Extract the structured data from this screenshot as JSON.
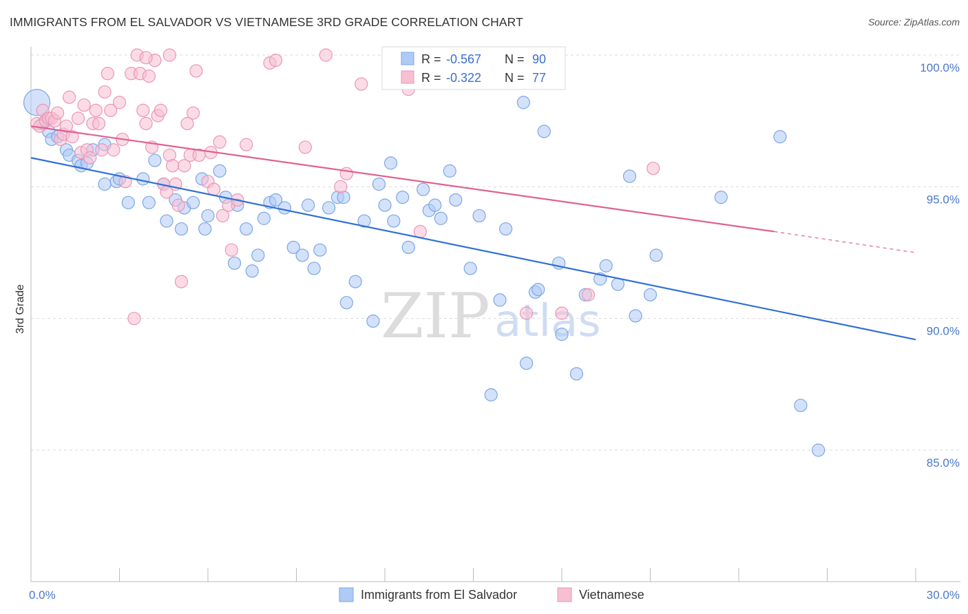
{
  "title": "IMMIGRANTS FROM EL SALVADOR VS VIETNAMESE 3RD GRADE CORRELATION CHART",
  "source": "Source: ZipAtlas.com",
  "watermark": {
    "zip": "ZIP",
    "atlas": "atlas"
  },
  "colors": {
    "blue": "#4a86e0",
    "blue_fill": "#aecbf5",
    "pink": "#e8699a",
    "pink_fill": "#f7bfd2",
    "tick": "#4a78c8"
  },
  "legend": {
    "rows": [
      {
        "r_label": "R = ",
        "r_value": "-0.567",
        "n_label": "N = ",
        "n_value": "90"
      },
      {
        "r_label": "R = ",
        "r_value": "-0.322",
        "n_label": "N = ",
        "n_value": "77"
      }
    ]
  },
  "chart_data": {
    "type": "scatter",
    "xlabel": "",
    "ylabel": "3rd Grade",
    "xlim": [
      0,
      30
    ],
    "ylim": [
      80.5,
      101
    ],
    "x_tick_labels": [
      "0.0%",
      "30.0%"
    ],
    "y_ticks": [
      {
        "value": 100,
        "label": "100.0%"
      },
      {
        "value": 95,
        "label": "95.0%"
      },
      {
        "value": 90,
        "label": "90.0%"
      },
      {
        "value": 85,
        "label": "85.0%"
      }
    ],
    "grid": "horizontal-dashed",
    "legend_position": "top-center",
    "series": [
      {
        "name": "Immigrants from El Salvador",
        "color": "#4a86e0",
        "trend": {
          "x": [
            0,
            30
          ],
          "y": [
            96.1,
            89.2
          ],
          "dashed_from": null
        },
        "points": [
          [
            0.2,
            98.2
          ],
          [
            0.5,
            97.5
          ],
          [
            0.6,
            97.1
          ],
          [
            0.7,
            96.8
          ],
          [
            0.9,
            96.9
          ],
          [
            1.2,
            96.4
          ],
          [
            1.3,
            96.2
          ],
          [
            1.6,
            96.0
          ],
          [
            1.7,
            95.8
          ],
          [
            1.9,
            95.9
          ],
          [
            2.1,
            96.4
          ],
          [
            2.5,
            96.6
          ],
          [
            2.5,
            95.1
          ],
          [
            2.9,
            95.2
          ],
          [
            3.0,
            95.3
          ],
          [
            3.3,
            94.4
          ],
          [
            3.8,
            95.3
          ],
          [
            4.0,
            94.4
          ],
          [
            4.2,
            96.0
          ],
          [
            4.5,
            95.1
          ],
          [
            4.6,
            93.7
          ],
          [
            4.9,
            94.5
          ],
          [
            5.1,
            93.4
          ],
          [
            5.2,
            94.2
          ],
          [
            5.5,
            94.4
          ],
          [
            5.8,
            95.3
          ],
          [
            5.9,
            93.4
          ],
          [
            6.0,
            93.9
          ],
          [
            6.4,
            95.6
          ],
          [
            6.6,
            94.6
          ],
          [
            6.9,
            92.1
          ],
          [
            7.0,
            94.3
          ],
          [
            7.3,
            93.4
          ],
          [
            7.5,
            91.8
          ],
          [
            7.7,
            92.4
          ],
          [
            7.9,
            93.8
          ],
          [
            8.1,
            94.4
          ],
          [
            8.3,
            94.5
          ],
          [
            8.6,
            94.2
          ],
          [
            8.9,
            92.7
          ],
          [
            9.2,
            92.4
          ],
          [
            9.4,
            94.3
          ],
          [
            9.6,
            91.9
          ],
          [
            9.8,
            92.6
          ],
          [
            10.1,
            94.2
          ],
          [
            10.4,
            94.6
          ],
          [
            10.6,
            94.6
          ],
          [
            10.7,
            90.6
          ],
          [
            11.0,
            91.4
          ],
          [
            11.3,
            93.7
          ],
          [
            11.6,
            89.9
          ],
          [
            11.8,
            95.1
          ],
          [
            12.0,
            94.3
          ],
          [
            12.2,
            95.9
          ],
          [
            12.3,
            93.7
          ],
          [
            12.6,
            94.6
          ],
          [
            12.8,
            92.7
          ],
          [
            13.0,
            99.6
          ],
          [
            13.3,
            94.9
          ],
          [
            13.5,
            94.1
          ],
          [
            13.7,
            94.3
          ],
          [
            13.9,
            93.8
          ],
          [
            14.2,
            95.6
          ],
          [
            14.4,
            94.5
          ],
          [
            14.9,
            91.9
          ],
          [
            15.2,
            93.9
          ],
          [
            15.6,
            87.1
          ],
          [
            15.9,
            90.7
          ],
          [
            16.1,
            93.4
          ],
          [
            16.7,
            98.2
          ],
          [
            16.8,
            88.3
          ],
          [
            17.1,
            91.0
          ],
          [
            17.2,
            91.1
          ],
          [
            17.4,
            97.1
          ],
          [
            17.9,
            92.1
          ],
          [
            18.0,
            89.4
          ],
          [
            18.5,
            87.9
          ],
          [
            18.8,
            90.9
          ],
          [
            19.3,
            91.5
          ],
          [
            19.5,
            92.0
          ],
          [
            19.9,
            91.3
          ],
          [
            20.3,
            95.4
          ],
          [
            20.5,
            90.1
          ],
          [
            21.0,
            90.9
          ],
          [
            21.2,
            92.4
          ],
          [
            23.4,
            94.6
          ],
          [
            25.4,
            96.9
          ],
          [
            26.1,
            86.7
          ],
          [
            26.7,
            85.0
          ],
          [
            0.4,
            97.4
          ]
        ]
      },
      {
        "name": "Vietnamese",
        "color": "#e8699a",
        "trend": {
          "x": [
            0,
            25.2
          ],
          "y": [
            97.3,
            93.3
          ],
          "dashed_to": [
            30,
            92.5
          ]
        },
        "points": [
          [
            0.2,
            97.4
          ],
          [
            0.3,
            97.3
          ],
          [
            0.4,
            97.9
          ],
          [
            0.5,
            97.5
          ],
          [
            0.6,
            97.6
          ],
          [
            0.7,
            97.6
          ],
          [
            0.8,
            97.5
          ],
          [
            0.9,
            97.8
          ],
          [
            1.0,
            96.8
          ],
          [
            1.1,
            97.0
          ],
          [
            1.2,
            97.3
          ],
          [
            1.3,
            98.4
          ],
          [
            1.4,
            96.9
          ],
          [
            1.6,
            97.6
          ],
          [
            1.7,
            96.3
          ],
          [
            1.8,
            98.1
          ],
          [
            1.9,
            96.4
          ],
          [
            2.0,
            96.1
          ],
          [
            2.1,
            97.4
          ],
          [
            2.2,
            97.9
          ],
          [
            2.3,
            97.4
          ],
          [
            2.4,
            96.4
          ],
          [
            2.5,
            98.6
          ],
          [
            2.7,
            97.9
          ],
          [
            2.8,
            96.4
          ],
          [
            3.0,
            98.2
          ],
          [
            3.1,
            96.8
          ],
          [
            3.2,
            95.2
          ],
          [
            3.4,
            99.3
          ],
          [
            3.5,
            90.0
          ],
          [
            3.7,
            99.3
          ],
          [
            3.8,
            97.9
          ],
          [
            3.9,
            97.4
          ],
          [
            4.0,
            99.2
          ],
          [
            4.1,
            96.5
          ],
          [
            4.2,
            99.8
          ],
          [
            4.3,
            97.7
          ],
          [
            4.4,
            97.9
          ],
          [
            4.5,
            95.1
          ],
          [
            4.6,
            94.8
          ],
          [
            4.7,
            96.2
          ],
          [
            4.8,
            95.8
          ],
          [
            4.9,
            95.1
          ],
          [
            5.0,
            94.3
          ],
          [
            5.1,
            91.4
          ],
          [
            5.2,
            95.8
          ],
          [
            5.3,
            97.4
          ],
          [
            5.4,
            96.2
          ],
          [
            5.5,
            97.8
          ],
          [
            5.6,
            99.4
          ],
          [
            5.7,
            96.2
          ],
          [
            6.0,
            95.2
          ],
          [
            6.1,
            96.3
          ],
          [
            6.2,
            94.9
          ],
          [
            6.4,
            96.7
          ],
          [
            6.5,
            93.9
          ],
          [
            6.7,
            94.3
          ],
          [
            6.8,
            92.6
          ],
          [
            7.0,
            94.5
          ],
          [
            7.3,
            96.6
          ],
          [
            8.1,
            99.7
          ],
          [
            8.3,
            99.8
          ],
          [
            9.3,
            96.5
          ],
          [
            10.0,
            100.0
          ],
          [
            10.5,
            95.0
          ],
          [
            10.7,
            95.5
          ],
          [
            11.2,
            98.9
          ],
          [
            12.8,
            98.7
          ],
          [
            13.2,
            93.3
          ],
          [
            16.8,
            90.2
          ],
          [
            18.0,
            90.2
          ],
          [
            18.9,
            90.9
          ],
          [
            21.1,
            95.7
          ],
          [
            3.6,
            100.0
          ],
          [
            3.9,
            99.9
          ],
          [
            2.6,
            99.3
          ],
          [
            4.7,
            100.0
          ]
        ]
      }
    ]
  }
}
